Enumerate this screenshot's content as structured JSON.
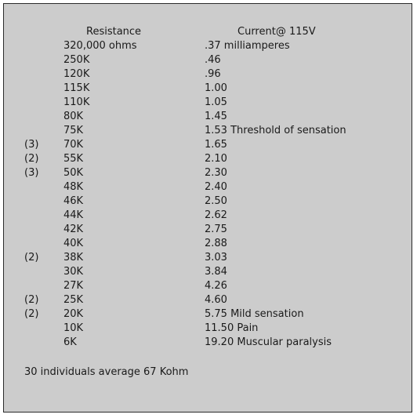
{
  "table": {
    "headers": {
      "resistance": "Resistance",
      "current": "Current@ 115V"
    },
    "rows": [
      {
        "mark": "",
        "resistance": "320,000 ohms",
        "current": ".37 milliamperes"
      },
      {
        "mark": "",
        "resistance": "250K",
        "current": ".46"
      },
      {
        "mark": "",
        "resistance": "120K",
        "current": ".96"
      },
      {
        "mark": "",
        "resistance": "115K",
        "current": "1.00"
      },
      {
        "mark": "",
        "resistance": "110K",
        "current": "1.05"
      },
      {
        "mark": "",
        "resistance": "80K",
        "current": "1.45"
      },
      {
        "mark": "",
        "resistance": "75K",
        "current": "1.53 Threshold of sensation"
      },
      {
        "mark": "(3)",
        "resistance": "70K",
        "current": "1.65"
      },
      {
        "mark": "(2)",
        "resistance": "55K",
        "current": "2.10"
      },
      {
        "mark": "(3)",
        "resistance": "50K",
        "current": "2.30"
      },
      {
        "mark": "",
        "resistance": "48K",
        "current": "2.40"
      },
      {
        "mark": "",
        "resistance": "46K",
        "current": "2.50"
      },
      {
        "mark": "",
        "resistance": "44K",
        "current": "2.62"
      },
      {
        "mark": "",
        "resistance": "42K",
        "current": "2.75"
      },
      {
        "mark": "",
        "resistance": "40K",
        "current": "2.88"
      },
      {
        "mark": "(2)",
        "resistance": "38K",
        "current": "3.03"
      },
      {
        "mark": "",
        "resistance": "30K",
        "current": "3.84"
      },
      {
        "mark": "",
        "resistance": "27K",
        "current": "4.26"
      },
      {
        "mark": "(2)",
        "resistance": "25K",
        "current": "4.60"
      },
      {
        "mark": "(2)",
        "resistance": "20K",
        "current": "5.75 Mild sensation"
      },
      {
        "mark": "",
        "resistance": "10K",
        "current": "11.50 Pain"
      },
      {
        "mark": "",
        "resistance": "6K",
        "current": "19.20 Muscular paralysis"
      }
    ]
  },
  "footer": {
    "note": "30 individuals average 67 Kohm"
  },
  "colors": {
    "panel_background": "#cccccc",
    "panel_border": "#2a2a2a",
    "text": "#1a1a1a"
  }
}
